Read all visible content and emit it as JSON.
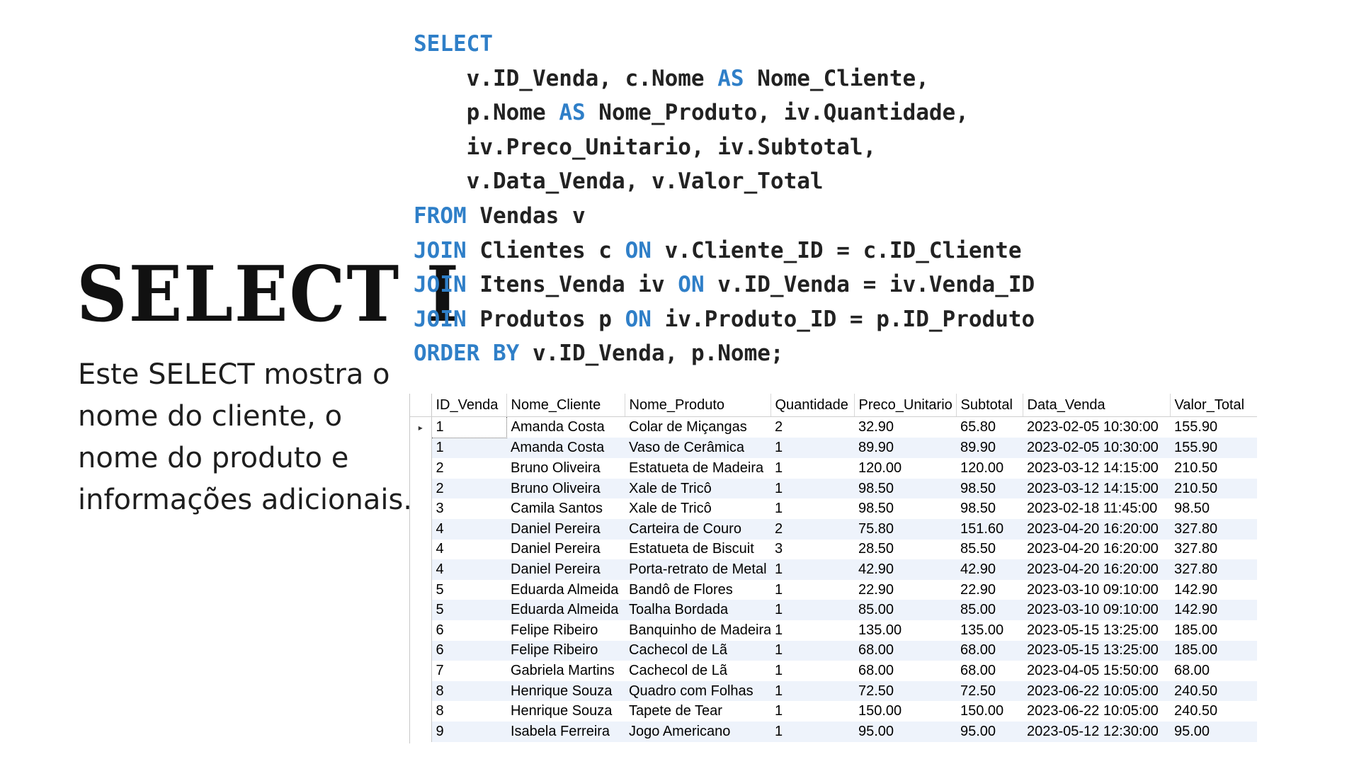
{
  "slide": {
    "title": "SELECT I",
    "description": "Este SELECT mostra o nome do cliente, o nome do produto e informações adicionais."
  },
  "sql": {
    "lines": [
      [
        {
          "t": "SELECT",
          "k": 1
        }
      ],
      [
        {
          "t": "    "
        },
        {
          "t": "v.ID_Venda, c.Nome "
        },
        {
          "t": "AS",
          "k": 1
        },
        {
          "t": " Nome_Cliente,"
        }
      ],
      [
        {
          "t": "    "
        },
        {
          "t": "p.Nome "
        },
        {
          "t": "AS",
          "k": 1
        },
        {
          "t": " Nome_Produto, iv.Quantidade,"
        }
      ],
      [
        {
          "t": "    "
        },
        {
          "t": "iv.Preco_Unitario, iv.Subtotal,"
        }
      ],
      [
        {
          "t": "    "
        },
        {
          "t": "v.Data_Venda, v.Valor_Total"
        }
      ],
      [
        {
          "t": "FROM",
          "k": 1
        },
        {
          "t": " Vendas v"
        }
      ],
      [
        {
          "t": "JOIN",
          "k": 1
        },
        {
          "t": " Clientes c "
        },
        {
          "t": "ON",
          "k": 1
        },
        {
          "t": " v.Cliente_ID = c.ID_Cliente"
        }
      ],
      [
        {
          "t": "JOIN",
          "k": 1
        },
        {
          "t": " Itens_Venda iv "
        },
        {
          "t": "ON",
          "k": 1
        },
        {
          "t": " v.ID_Venda = iv.Venda_ID"
        }
      ],
      [
        {
          "t": "JOIN",
          "k": 1
        },
        {
          "t": " Produtos p "
        },
        {
          "t": "ON",
          "k": 1
        },
        {
          "t": " iv.Produto_ID = p.ID_Produto"
        }
      ],
      [
        {
          "t": "ORDER BY",
          "k": 1
        },
        {
          "t": " v.ID_Venda, p.Nome;"
        }
      ]
    ],
    "keyword_color": "#2f7fc8"
  },
  "results": {
    "row_selector_glyph": "▸",
    "columns": [
      "ID_Venda",
      "Nome_Cliente",
      "Nome_Produto",
      "Quantidade",
      "Preco_Unitario",
      "Subtotal",
      "Data_Venda",
      "Valor_Total"
    ],
    "rows": [
      [
        "1",
        "Amanda Costa",
        "Colar de Miçangas",
        "2",
        "32.90",
        "65.80",
        "2023-02-05 10:30:00",
        "155.90"
      ],
      [
        "1",
        "Amanda Costa",
        "Vaso de Cerâmica",
        "1",
        "89.90",
        "89.90",
        "2023-02-05 10:30:00",
        "155.90"
      ],
      [
        "2",
        "Bruno Oliveira",
        "Estatueta de Madeira",
        "1",
        "120.00",
        "120.00",
        "2023-03-12 14:15:00",
        "210.50"
      ],
      [
        "2",
        "Bruno Oliveira",
        "Xale de Tricô",
        "1",
        "98.50",
        "98.50",
        "2023-03-12 14:15:00",
        "210.50"
      ],
      [
        "3",
        "Camila Santos",
        "Xale de Tricô",
        "1",
        "98.50",
        "98.50",
        "2023-02-18 11:45:00",
        "98.50"
      ],
      [
        "4",
        "Daniel Pereira",
        "Carteira de Couro",
        "2",
        "75.80",
        "151.60",
        "2023-04-20 16:20:00",
        "327.80"
      ],
      [
        "4",
        "Daniel Pereira",
        "Estatueta de Biscuit",
        "3",
        "28.50",
        "85.50",
        "2023-04-20 16:20:00",
        "327.80"
      ],
      [
        "4",
        "Daniel Pereira",
        "Porta-retrato de Metal",
        "1",
        "42.90",
        "42.90",
        "2023-04-20 16:20:00",
        "327.80"
      ],
      [
        "5",
        "Eduarda Almeida",
        "Bandô de Flores",
        "1",
        "22.90",
        "22.90",
        "2023-03-10 09:10:00",
        "142.90"
      ],
      [
        "5",
        "Eduarda Almeida",
        "Toalha Bordada",
        "1",
        "85.00",
        "85.00",
        "2023-03-10 09:10:00",
        "142.90"
      ],
      [
        "6",
        "Felipe Ribeiro",
        "Banquinho de Madeira",
        "1",
        "135.00",
        "135.00",
        "2023-05-15 13:25:00",
        "185.00"
      ],
      [
        "6",
        "Felipe Ribeiro",
        "Cachecol de Lã",
        "1",
        "68.00",
        "68.00",
        "2023-05-15 13:25:00",
        "185.00"
      ],
      [
        "7",
        "Gabriela Martins",
        "Cachecol de Lã",
        "1",
        "68.00",
        "68.00",
        "2023-04-05 15:50:00",
        "68.00"
      ],
      [
        "8",
        "Henrique Souza",
        "Quadro com Folhas",
        "1",
        "72.50",
        "72.50",
        "2023-06-22 10:05:00",
        "240.50"
      ],
      [
        "8",
        "Henrique Souza",
        "Tapete de Tear",
        "1",
        "150.00",
        "150.00",
        "2023-06-22 10:05:00",
        "240.50"
      ],
      [
        "9",
        "Isabela Ferreira",
        "Jogo Americano",
        "1",
        "95.00",
        "95.00",
        "2023-05-12 12:30:00",
        "95.00"
      ]
    ]
  }
}
